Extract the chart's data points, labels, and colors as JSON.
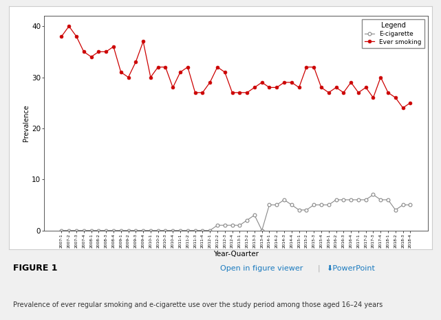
{
  "x_labels": [
    "2007-1",
    "2007-2",
    "2007-3",
    "2007-4",
    "2008-1",
    "2008-2",
    "2008-3",
    "2008-4",
    "2009-1",
    "2009-2",
    "2009-3",
    "2009-4",
    "2010-1",
    "2010-2",
    "2010-3",
    "2010-4",
    "2011-1",
    "2011-2",
    "2011-3",
    "2011-4",
    "2012-1",
    "2012-2",
    "2012-3",
    "2012-4",
    "2013-1",
    "2013-2",
    "2013-3",
    "2013-4",
    "2014-1",
    "2014-2",
    "2014-3",
    "2014-4",
    "2015-1",
    "2015-2",
    "2015-3",
    "2015-4",
    "2016-1",
    "2016-2",
    "2016-3",
    "2016-4",
    "2017-1",
    "2017-2",
    "2017-3",
    "2017-4",
    "2018-1",
    "2018-2",
    "2018-3",
    "2018-4"
  ],
  "ever_smoking": [
    38,
    40,
    38,
    35,
    34,
    35,
    35,
    36,
    31,
    30,
    33,
    37,
    30,
    32,
    32,
    28,
    31,
    32,
    27,
    27,
    29,
    32,
    31,
    27,
    27,
    27,
    28,
    29,
    28,
    28,
    29,
    29,
    28,
    32,
    32,
    28,
    27,
    28,
    27,
    29,
    27,
    28,
    26,
    30,
    27,
    26,
    24,
    25
  ],
  "e_cigarette": [
    0,
    0,
    0,
    0,
    0,
    0,
    0,
    0,
    0,
    0,
    0,
    0,
    0,
    0,
    0,
    0,
    0,
    0,
    0,
    0,
    0,
    1,
    1,
    1,
    1,
    2,
    3,
    0,
    5,
    5,
    6,
    5,
    4,
    4,
    5,
    5,
    5,
    6,
    6,
    6,
    6,
    6,
    7,
    6,
    6,
    4,
    5,
    5
  ],
  "smoking_color": "#cc0000",
  "ecig_color": "#888888",
  "ylabel": "Prevalence",
  "xlabel": "Year-Quarter",
  "legend_title": "Legend",
  "legend_labels": [
    "E-cigarette",
    "Ever smoking"
  ],
  "ylim": [
    0,
    42
  ],
  "yticks": [
    0,
    10,
    20,
    30,
    40
  ],
  "bg_color": "#f0f0f0",
  "panel_color": "#ffffff",
  "chart_bg": "#ffffff",
  "figure1_text": "FIGURE 1",
  "link_text": "Open in figure viewer",
  "powerpoint_text": "⬇PowerPoint",
  "caption": "Prevalence of ever regular smoking and e-cigarette use over the study period among those aged 16–24 years"
}
